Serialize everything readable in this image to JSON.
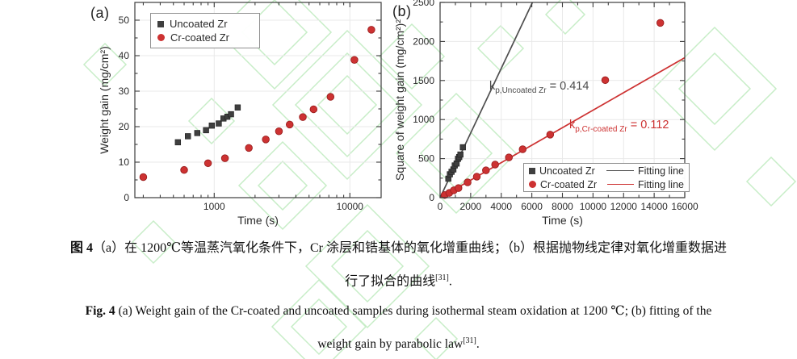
{
  "panel_labels": {
    "a": "(a)",
    "b": "(b)"
  },
  "colors": {
    "uncoated": "#3f3f3f",
    "coated": "#cd3232",
    "fit_black": "#4f4f4f",
    "fit_red": "#cd3232",
    "grid": "#e9e9e9",
    "frame": "#3c3c3c",
    "text": "#2a2a2a",
    "watermark": "#9adf9a"
  },
  "chart_data": [
    {
      "id": "a",
      "type": "scatter",
      "xscale": "log",
      "xlabel": "Time (s)",
      "ylabel": "Weight gain (mg/cm²)",
      "xlim": [
        260,
        17000
      ],
      "ylim": [
        0,
        55
      ],
      "xticks": [
        1000,
        10000
      ],
      "xtick_labels": [
        "1000",
        "10000"
      ],
      "xminor": [
        300,
        400,
        500,
        600,
        700,
        800,
        900,
        2000,
        3000,
        4000,
        5000,
        6000,
        7000,
        8000,
        9000
      ],
      "yticks": [
        0,
        10,
        20,
        30,
        40,
        50
      ],
      "yminor": [
        5,
        15,
        25,
        35,
        45
      ],
      "grid": true,
      "legend_position": "top-left",
      "series": [
        {
          "name": "Uncoated Zr",
          "marker": "square",
          "color": "#3f3f3f",
          "x": [
            540,
            640,
            750,
            870,
            960,
            1080,
            1170,
            1250,
            1330,
            1490
          ],
          "y": [
            15.6,
            17.3,
            18.2,
            19.0,
            20.3,
            20.9,
            22.3,
            22.8,
            23.5,
            25.4
          ]
        },
        {
          "name": "Cr-coated Zr",
          "marker": "circle",
          "color": "#cd3232",
          "x": [
            300,
            600,
            900,
            1200,
            1800,
            2400,
            3000,
            3600,
            4500,
            5400,
            7200,
            10800,
            14400
          ],
          "y": [
            5.8,
            7.8,
            9.7,
            11.1,
            14.0,
            16.4,
            18.7,
            20.6,
            22.7,
            24.9,
            28.4,
            38.8,
            47.3
          ]
        }
      ]
    },
    {
      "id": "b",
      "type": "scatter",
      "xscale": "linear",
      "xlabel": "Time (s)",
      "ylabel": "Square of weight gain (mg/cm²)²",
      "xlim": [
        0,
        16000
      ],
      "ylim": [
        0,
        2500
      ],
      "xticks": [
        0,
        2000,
        4000,
        6000,
        8000,
        10000,
        12000,
        14000,
        16000
      ],
      "xtick_labels": [
        "0",
        "2000",
        "4000",
        "6000",
        "8000",
        "10000",
        "12000",
        "14000",
        "16000"
      ],
      "xminor": [
        1000,
        3000,
        5000,
        7000,
        9000,
        11000,
        13000,
        15000
      ],
      "yticks": [
        0,
        500,
        1000,
        1500,
        2000,
        2500
      ],
      "yminor": [
        250,
        750,
        1250,
        1750,
        2250
      ],
      "grid": true,
      "legend_position": "bottom-right",
      "series": [
        {
          "name": "Uncoated Zr",
          "marker": "square",
          "color": "#3f3f3f",
          "x": [
            540,
            640,
            750,
            870,
            960,
            1080,
            1170,
            1250,
            1330,
            1490
          ],
          "y": [
            243,
            299,
            331,
            361,
            412,
            437,
            497,
            520,
            552,
            645
          ]
        },
        {
          "name": "Cr-coated Zr",
          "marker": "circle",
          "color": "#cd3232",
          "x": [
            300,
            600,
            900,
            1200,
            1800,
            2400,
            3000,
            3600,
            4500,
            5400,
            7200,
            10800,
            14400
          ],
          "y": [
            34,
            61,
            94,
            123,
            196,
            269,
            350,
            424,
            515,
            620,
            807,
            1505,
            2238
          ]
        }
      ],
      "fit_lines": [
        {
          "name": "Fitting line",
          "color": "#4f4f4f",
          "slope": 0.414,
          "x1": 0,
          "y1": 0,
          "x2": 6040,
          "y2": 2500
        },
        {
          "name": "Fitting line",
          "color": "#cd3232",
          "slope": 0.112,
          "x1": 0,
          "y1": 0,
          "x2": 16000,
          "y2": 1792
        }
      ],
      "annotations": [
        {
          "prefix": "k",
          "sub": "p,Uncoated Zr",
          "rest": " = 0.414",
          "color": "#4a4a4a"
        },
        {
          "prefix": "k",
          "sub": "p,Cr-coated Zr",
          "rest": " = 0.112",
          "color": "#cd3232"
        }
      ]
    }
  ],
  "captions": {
    "zh1_bold": "图 4",
    "zh1_rest": "（a）在 1200℃等温蒸汽氧化条件下，Cr 涂层和锆基体的氧化增重曲线；（b）根据抛物线定律对氧化增重数据进",
    "zh2_main": "行了拟合的曲线",
    "zh2_sup": "[31]",
    "zh2_end": ".",
    "en1_bold": "Fig. 4",
    "en1_rest": " (a) Weight gain of the Cr-coated and uncoated samples during isothermal steam oxidation at 1200 ℃; (b) fitting of the",
    "en2_main": "weight gain by parabolic law",
    "en2_sup": "[31]",
    "en2_end": "."
  }
}
